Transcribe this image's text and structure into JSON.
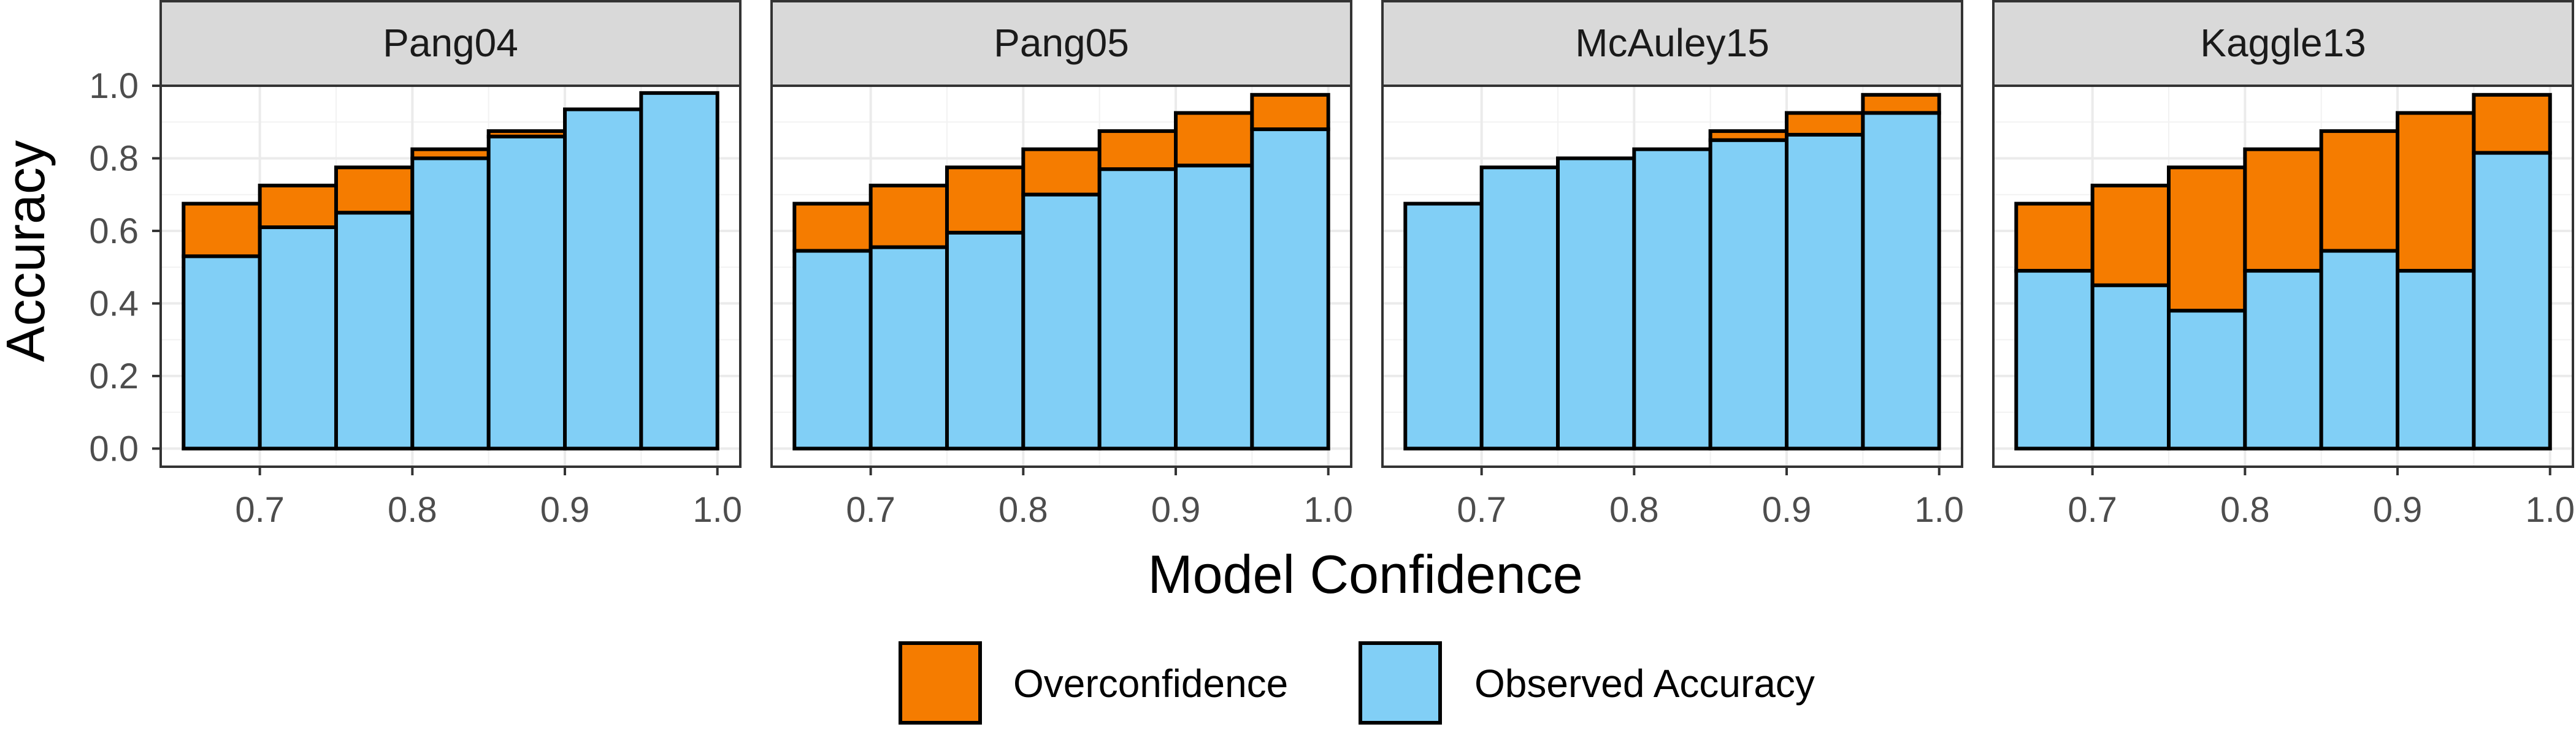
{
  "chart_data": {
    "type": "bar",
    "layout": "facets",
    "stacked": true,
    "xlabel": "Model Confidence",
    "ylabel": "Accuracy",
    "xlim": [
      0.635,
      1.015
    ],
    "ylim": [
      -0.05,
      1.0
    ],
    "x_ticks": [
      "0.7",
      "0.8",
      "0.9",
      "1.0"
    ],
    "y_ticks": [
      "0.0",
      "0.2",
      "0.4",
      "0.6",
      "0.8",
      "1.0"
    ],
    "grid": true,
    "legend_position": "bottom",
    "bin_edges": [
      0.65,
      0.7,
      0.75,
      0.8,
      0.85,
      0.9,
      0.95,
      1.0
    ],
    "series": [
      {
        "name": "Overconfidence",
        "color": "#F57C00"
      },
      {
        "name": "Observed Accuracy",
        "color": "#81CFF6"
      }
    ],
    "facets": [
      {
        "title": "Pang04",
        "confidence": [
          0.675,
          0.725,
          0.775,
          0.825,
          0.875,
          0.935,
          0.98
        ],
        "accuracy": [
          0.53,
          0.61,
          0.65,
          0.8,
          0.86,
          0.935,
          0.98
        ]
      },
      {
        "title": "Pang05",
        "confidence": [
          0.675,
          0.725,
          0.775,
          0.825,
          0.875,
          0.925,
          0.975
        ],
        "accuracy": [
          0.545,
          0.555,
          0.595,
          0.7,
          0.77,
          0.78,
          0.88
        ]
      },
      {
        "title": "McAuley15",
        "confidence": [
          0.675,
          0.775,
          0.8,
          0.825,
          0.875,
          0.925,
          0.975
        ],
        "accuracy": [
          0.675,
          0.775,
          0.8,
          0.825,
          0.85,
          0.865,
          0.925
        ]
      },
      {
        "title": "Kaggle13",
        "confidence": [
          0.675,
          0.725,
          0.775,
          0.825,
          0.875,
          0.925,
          0.975
        ],
        "accuracy": [
          0.49,
          0.45,
          0.38,
          0.49,
          0.545,
          0.49,
          0.815
        ]
      }
    ]
  }
}
